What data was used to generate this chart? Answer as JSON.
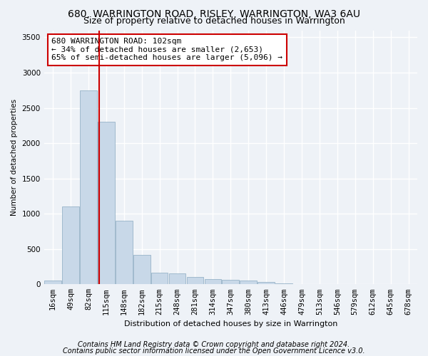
{
  "title1": "680, WARRINGTON ROAD, RISLEY, WARRINGTON, WA3 6AU",
  "title2": "Size of property relative to detached houses in Warrington",
  "xlabel": "Distribution of detached houses by size in Warrington",
  "ylabel": "Number of detached properties",
  "bar_color": "#c8d8e8",
  "bar_edgecolor": "#8aaac0",
  "vline_x": 3,
  "vline_color": "#cc0000",
  "annotation_text": "680 WARRINGTON ROAD: 102sqm\n← 34% of detached houses are smaller (2,653)\n65% of semi-detached houses are larger (5,096) →",
  "annotation_box_color": "#cc0000",
  "footnote1": "Contains HM Land Registry data © Crown copyright and database right 2024.",
  "footnote2": "Contains public sector information licensed under the Open Government Licence v3.0.",
  "bg_color": "#eef2f7",
  "grid_color": "#ffffff",
  "categories": [
    "16sqm",
    "49sqm",
    "82sqm",
    "115sqm",
    "148sqm",
    "182sqm",
    "215sqm",
    "248sqm",
    "281sqm",
    "314sqm",
    "347sqm",
    "380sqm",
    "413sqm",
    "446sqm",
    "479sqm",
    "513sqm",
    "546sqm",
    "579sqm",
    "612sqm",
    "645sqm",
    "678sqm"
  ],
  "values": [
    50,
    1100,
    2750,
    2300,
    900,
    420,
    160,
    150,
    100,
    75,
    60,
    50,
    30,
    10,
    3,
    2,
    1,
    0,
    0,
    0,
    0
  ],
  "ylim": [
    0,
    3600
  ],
  "yticks": [
    0,
    500,
    1000,
    1500,
    2000,
    2500,
    3000,
    3500
  ],
  "title_fontsize": 10,
  "subtitle_fontsize": 9,
  "annot_fontsize": 8,
  "tick_fontsize": 7.5,
  "footnote_fontsize": 7
}
